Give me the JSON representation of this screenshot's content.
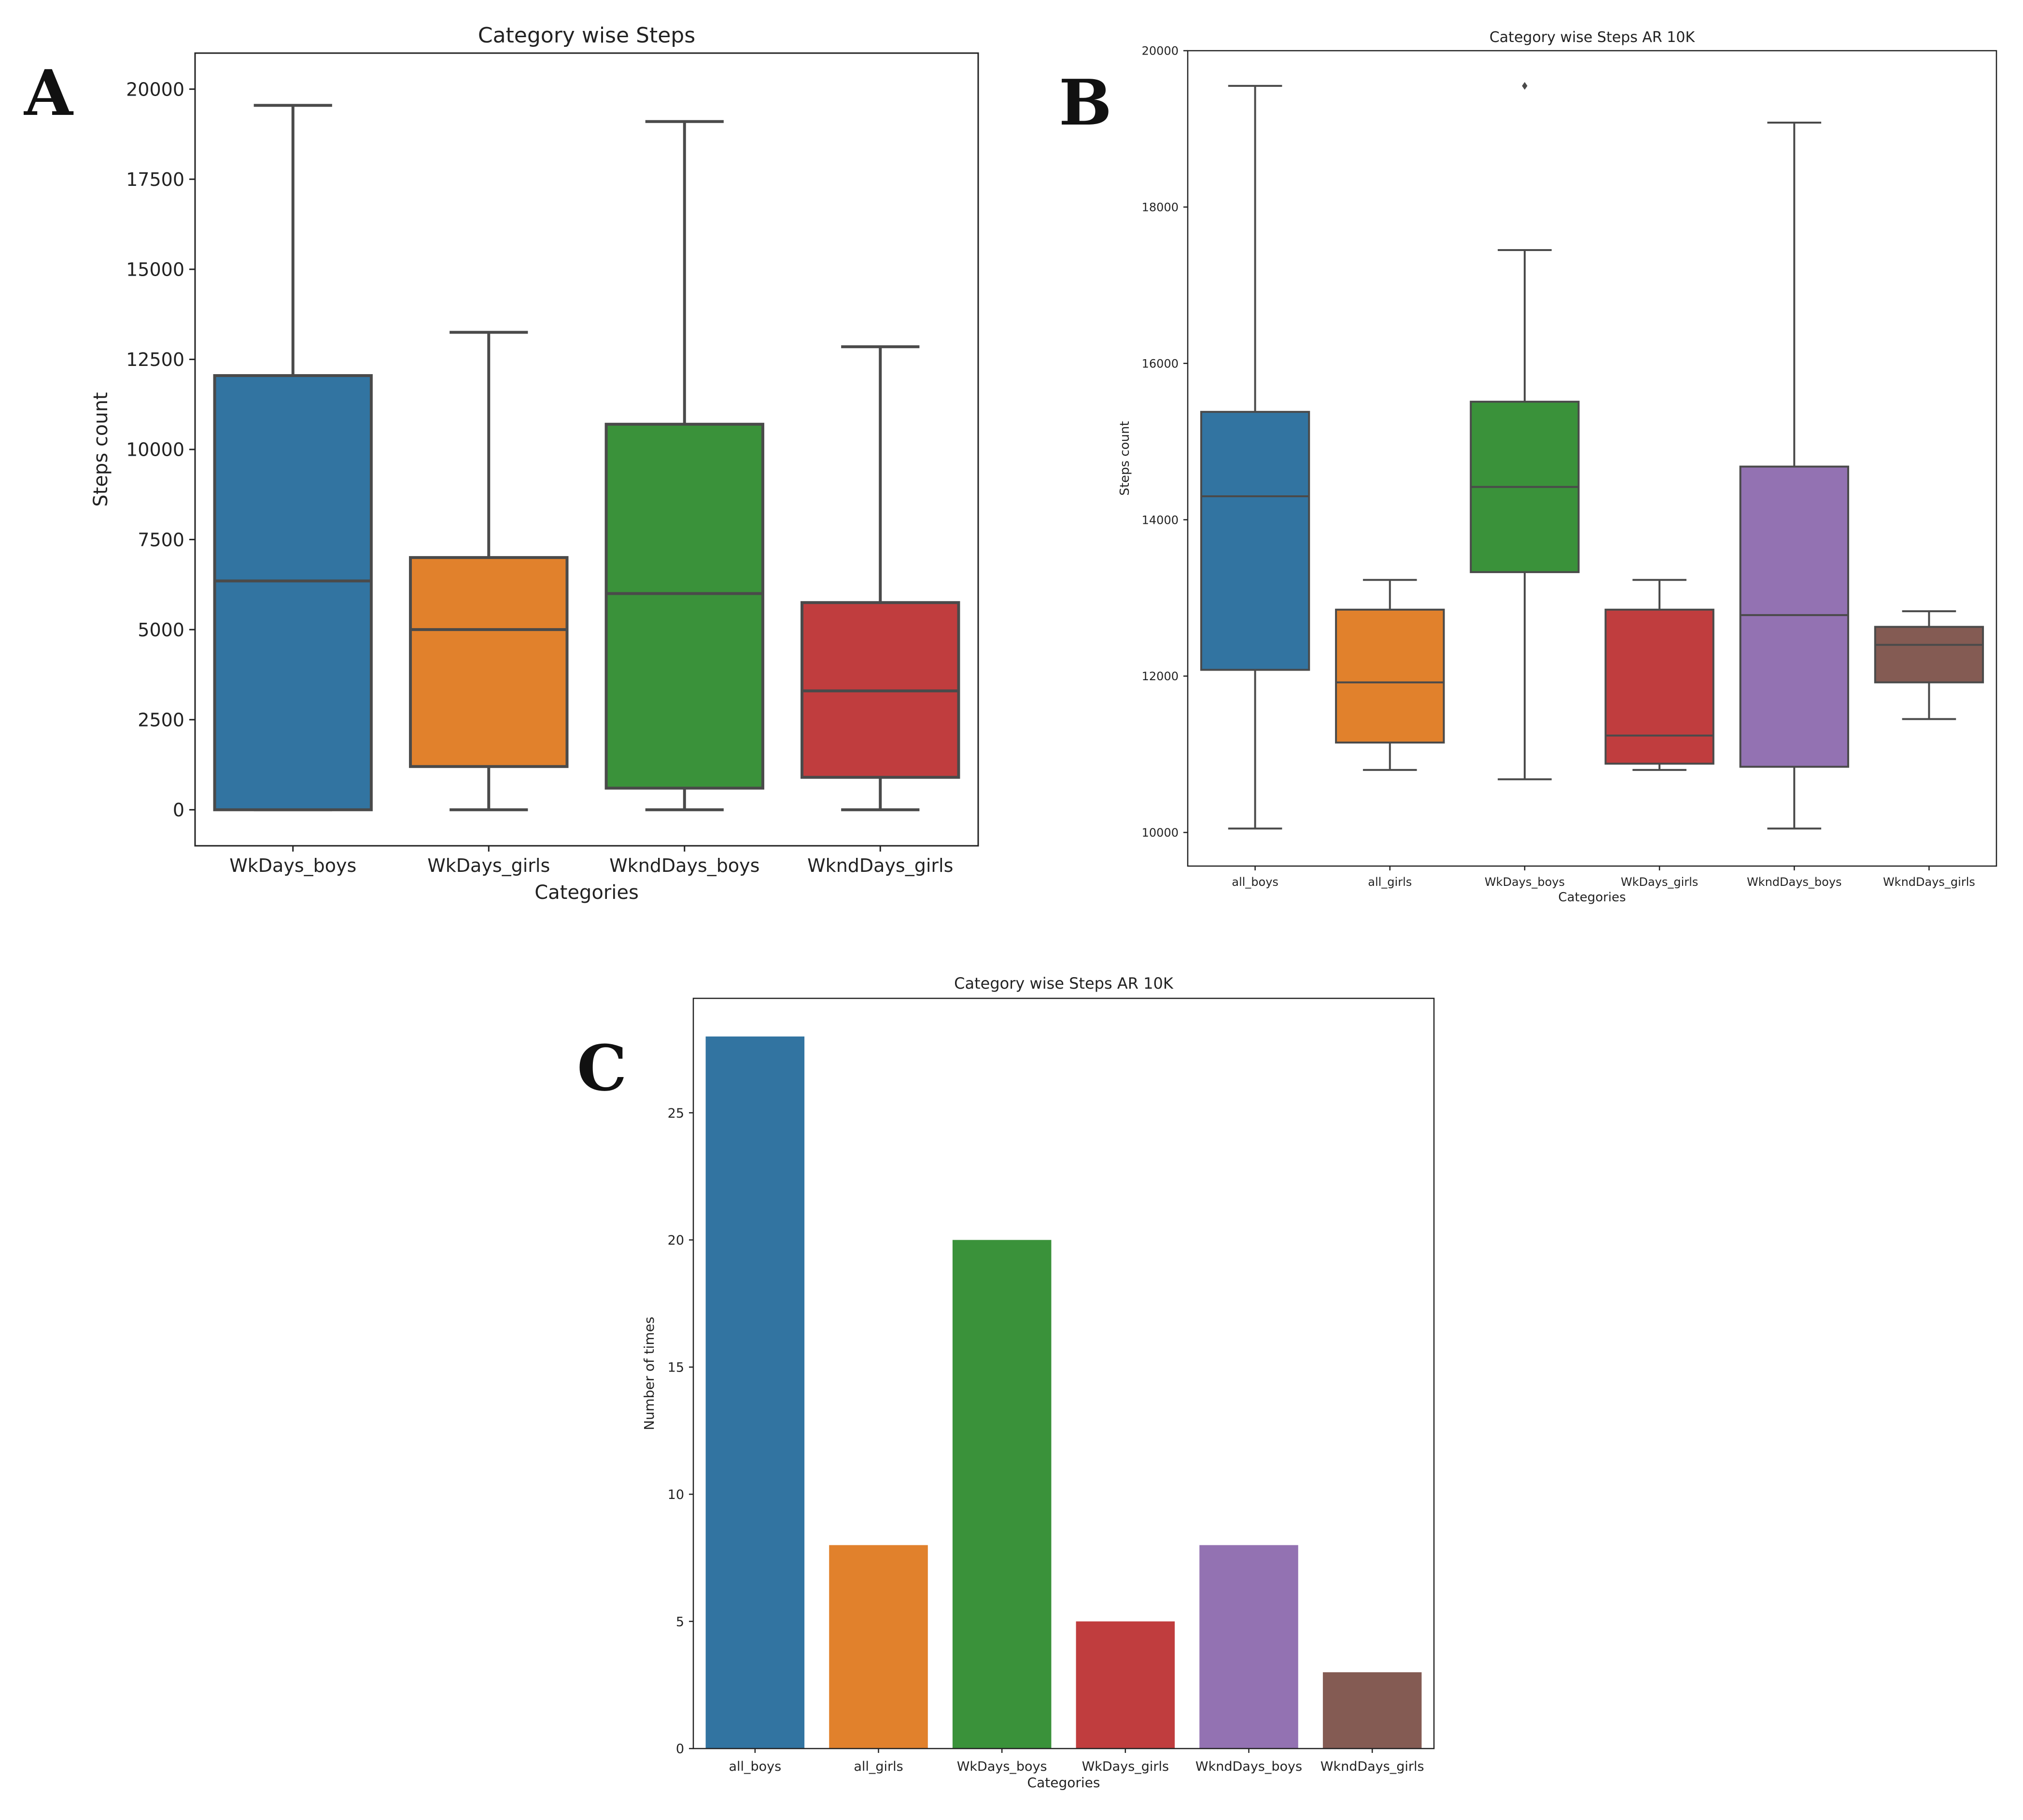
{
  "chart_data": [
    {
      "panel_label": "A",
      "type": "box",
      "title": "Category wise Steps",
      "xlabel": "Categories",
      "ylabel": "Steps count",
      "ylim": [
        -1000,
        21000
      ],
      "yticks": [
        0,
        2500,
        5000,
        7500,
        10000,
        12500,
        15000,
        17500,
        20000
      ],
      "categories": [
        "WkDays_boys",
        "WkDays_girls",
        "WkndDays_boys",
        "WkndDays_girls"
      ],
      "boxes": [
        {
          "category": "WkDays_boys",
          "whislo": 0,
          "q1": 0,
          "med": 6350,
          "q3": 12050,
          "whishi": 19550,
          "color": "#3274a1"
        },
        {
          "category": "WkDays_girls",
          "whislo": 0,
          "q1": 1200,
          "med": 5000,
          "q3": 7000,
          "whishi": 13250,
          "color": "#e1812c"
        },
        {
          "category": "WkndDays_boys",
          "whislo": 0,
          "q1": 600,
          "med": 6000,
          "q3": 10700,
          "whishi": 19100,
          "color": "#3a923a"
        },
        {
          "category": "WkndDays_girls",
          "whislo": 0,
          "q1": 900,
          "med": 3300,
          "q3": 5750,
          "whishi": 12850,
          "color": "#c03d3e"
        }
      ]
    },
    {
      "panel_label": "B",
      "type": "box",
      "title": "Category wise Steps AR 10K",
      "xlabel": "Categories",
      "ylabel": "Steps count",
      "ylim": [
        9570,
        20000
      ],
      "yticks": [
        10000,
        12000,
        14000,
        16000,
        18000,
        20000
      ],
      "categories": [
        "all_boys",
        "all_girls",
        "WkDays_boys",
        "WkDays_girls",
        "WkndDays_boys",
        "WkndDays_girls"
      ],
      "boxes": [
        {
          "category": "all_boys",
          "whislo": 10050,
          "q1": 12080,
          "med": 14300,
          "q3": 15380,
          "whishi": 19550,
          "fliers": [],
          "color": "#3274a1"
        },
        {
          "category": "all_girls",
          "whislo": 10800,
          "q1": 11150,
          "med": 11920,
          "q3": 12850,
          "whishi": 13230,
          "fliers": [],
          "color": "#e1812c"
        },
        {
          "category": "WkDays_boys",
          "whislo": 10680,
          "q1": 13330,
          "med": 14420,
          "q3": 15510,
          "whishi": 17450,
          "fliers": [
            19550
          ],
          "color": "#3a923a"
        },
        {
          "category": "WkDays_girls",
          "whislo": 10800,
          "q1": 10880,
          "med": 11240,
          "q3": 12850,
          "whishi": 13230,
          "fliers": [],
          "color": "#c03d3e"
        },
        {
          "category": "WkndDays_boys",
          "whislo": 10050,
          "q1": 10840,
          "med": 12780,
          "q3": 14680,
          "whishi": 19080,
          "fliers": [],
          "color": "#9372b2"
        },
        {
          "category": "WkndDays_girls",
          "whislo": 11450,
          "q1": 11920,
          "med": 12400,
          "q3": 12630,
          "whishi": 12830,
          "fliers": [],
          "color": "#845b53"
        }
      ]
    },
    {
      "panel_label": "C",
      "type": "bar",
      "title": "Category wise Steps AR 10K",
      "xlabel": "Categories",
      "ylabel": "Number of times",
      "ylim": [
        0,
        29.5
      ],
      "yticks": [
        0,
        5,
        10,
        15,
        20,
        25
      ],
      "categories": [
        "all_boys",
        "all_girls",
        "WkDays_boys",
        "WkDays_girls",
        "WkndDays_boys",
        "WkndDays_girls"
      ],
      "values": [
        28,
        8,
        20,
        5,
        8,
        3
      ],
      "colors": [
        "#3274a1",
        "#e1812c",
        "#3a923a",
        "#c03d3e",
        "#9372b2",
        "#845b53"
      ]
    }
  ]
}
